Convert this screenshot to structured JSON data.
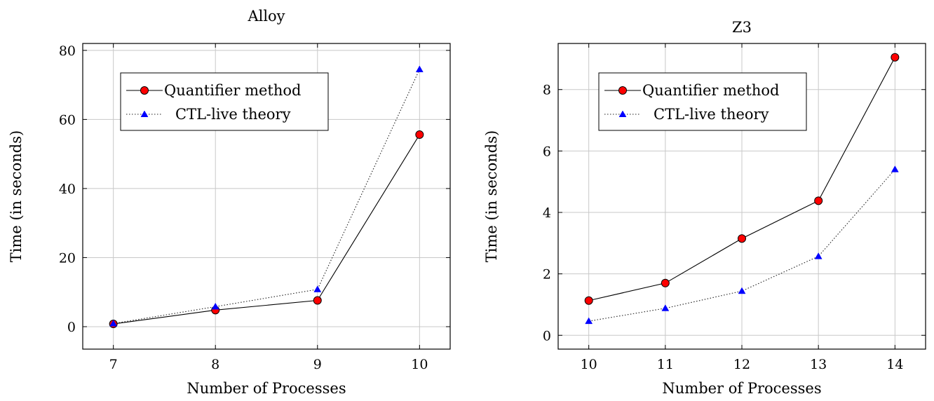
{
  "chart_data": [
    {
      "type": "line",
      "title": "Alloy",
      "xlabel": "Number of Processes",
      "ylabel": "Time (in seconds)",
      "xlim": [
        6.7,
        10.3
      ],
      "ylim": [
        -6.5,
        82
      ],
      "xticks": [
        7,
        8,
        9,
        10
      ],
      "yticks": [
        0,
        20,
        40,
        60,
        80
      ],
      "grid": true,
      "legend_position": "top-left",
      "series": [
        {
          "name": "Quantifier method",
          "color": "#ff0000",
          "marker": "circle",
          "line": "solid",
          "x": [
            7,
            8,
            9,
            10
          ],
          "y": [
            0.8,
            4.8,
            7.6,
            55.6
          ]
        },
        {
          "name": "CTL-live theory",
          "color": "#0000ff",
          "marker": "triangle",
          "line": "dotted",
          "x": [
            7,
            8,
            9,
            10
          ],
          "y": [
            0.9,
            5.8,
            10.8,
            74.5
          ]
        }
      ]
    },
    {
      "type": "line",
      "title": "Z3",
      "xlabel": "Number of Processes",
      "ylabel": "Time (in seconds)",
      "xlim": [
        9.6,
        14.4
      ],
      "ylim": [
        -0.45,
        9.5
      ],
      "xticks": [
        10,
        11,
        12,
        13,
        14
      ],
      "yticks": [
        0,
        2,
        4,
        6,
        8
      ],
      "grid": true,
      "legend_position": "top-left",
      "series": [
        {
          "name": "Quantifier method",
          "color": "#ff0000",
          "marker": "circle",
          "line": "solid",
          "x": [
            10,
            11,
            12,
            13,
            14
          ],
          "y": [
            1.13,
            1.7,
            3.15,
            4.38,
            9.05
          ]
        },
        {
          "name": "CTL-live theory",
          "color": "#0000ff",
          "marker": "triangle",
          "line": "dotted",
          "x": [
            10,
            11,
            12,
            13,
            14
          ],
          "y": [
            0.46,
            0.88,
            1.44,
            2.57,
            5.4
          ]
        }
      ]
    }
  ]
}
